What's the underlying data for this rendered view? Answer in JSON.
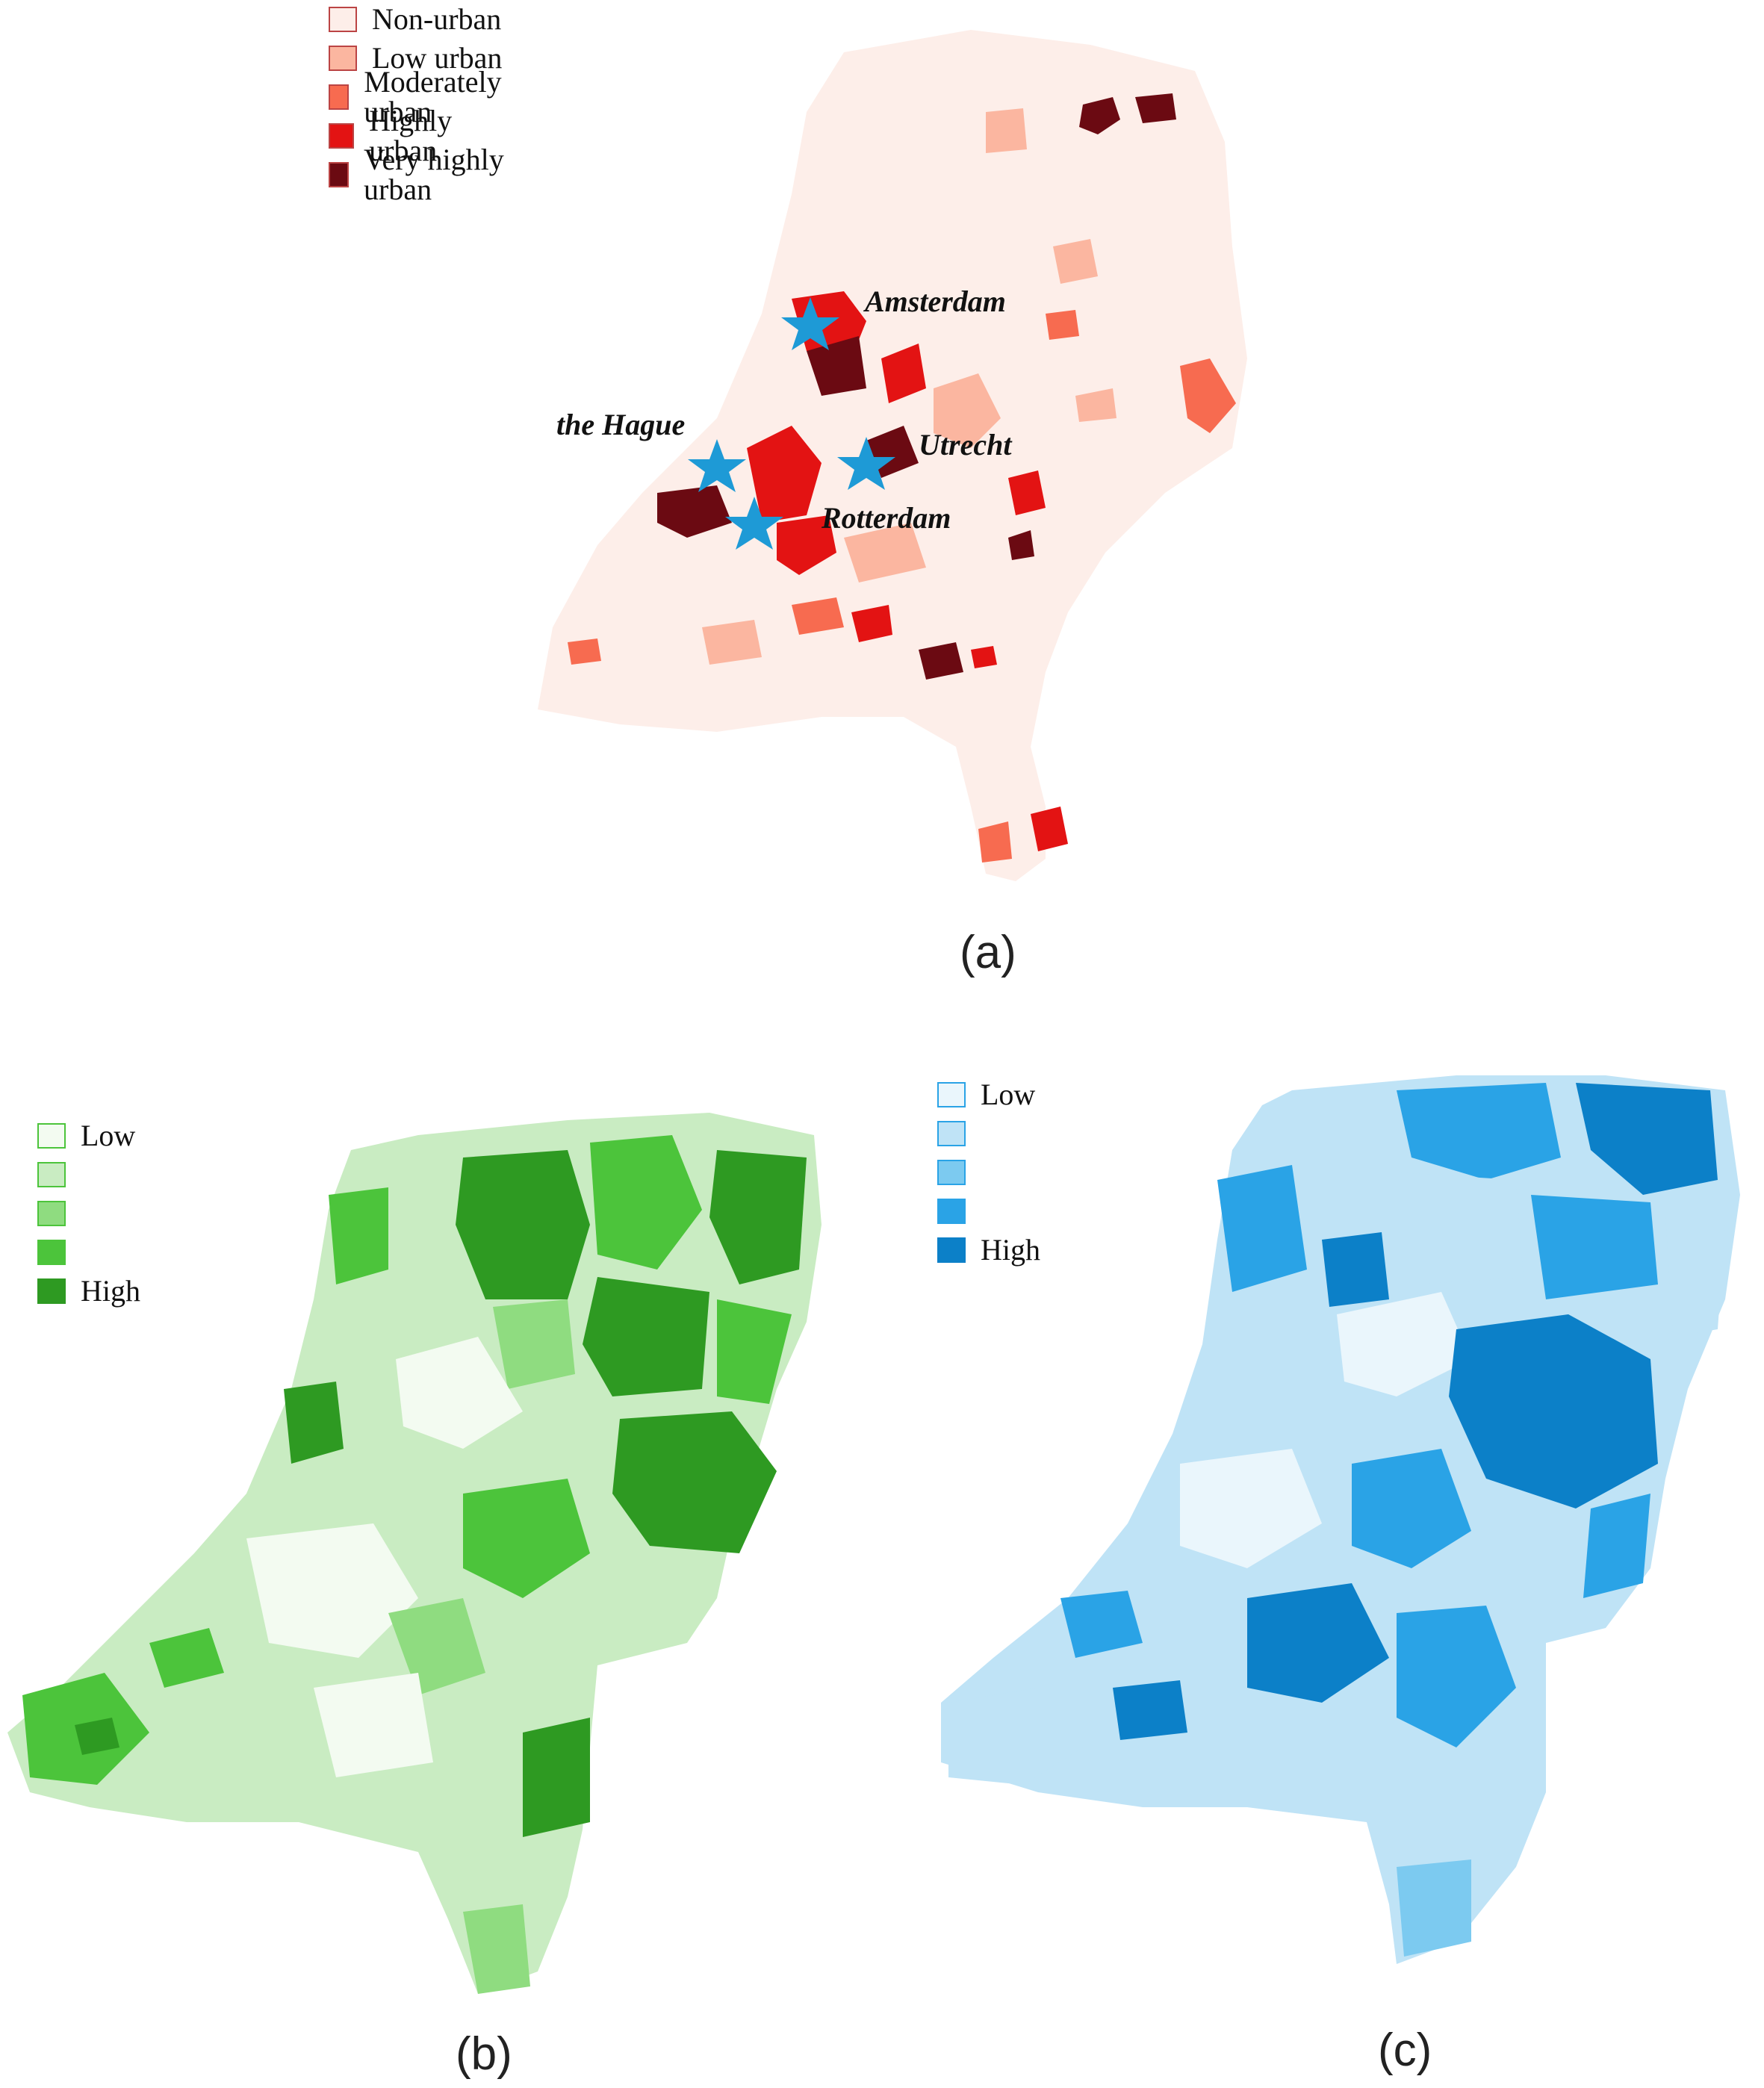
{
  "panel_a": {
    "caption": "(a)",
    "legend": [
      {
        "label": "Non-urban",
        "color": "#fdeee9"
      },
      {
        "label": "Low urban",
        "color": "#fbb6a0"
      },
      {
        "label": "Moderately urban",
        "color": "#f76b50"
      },
      {
        "label": "Highly urban",
        "color": "#e31313"
      },
      {
        "label": "Very highly urban",
        "color": "#6b0a12"
      }
    ],
    "cities": [
      {
        "name": "Amsterdam"
      },
      {
        "name": "the Hague"
      },
      {
        "name": "Utrecht"
      },
      {
        "name": "Rotterdam"
      }
    ],
    "marker_color": "#1e9ad6",
    "base_color": "#fdeee9"
  },
  "panel_b": {
    "caption": "(b)",
    "legend": [
      {
        "label": "Low",
        "color": "#f3fbf1"
      },
      {
        "label": "",
        "color": "#c9ecc2"
      },
      {
        "label": "",
        "color": "#8fdc80"
      },
      {
        "label": "",
        "color": "#4cc43b"
      },
      {
        "label": "High",
        "color": "#2e9a22"
      }
    ]
  },
  "panel_c": {
    "caption": "(c)",
    "legend": [
      {
        "label": "Low",
        "color": "#eaf6fc"
      },
      {
        "label": "",
        "color": "#bfe3f6"
      },
      {
        "label": "",
        "color": "#7ccaf0"
      },
      {
        "label": "",
        "color": "#2aa3e6"
      },
      {
        "label": "High",
        "color": "#0c80c8"
      }
    ]
  }
}
